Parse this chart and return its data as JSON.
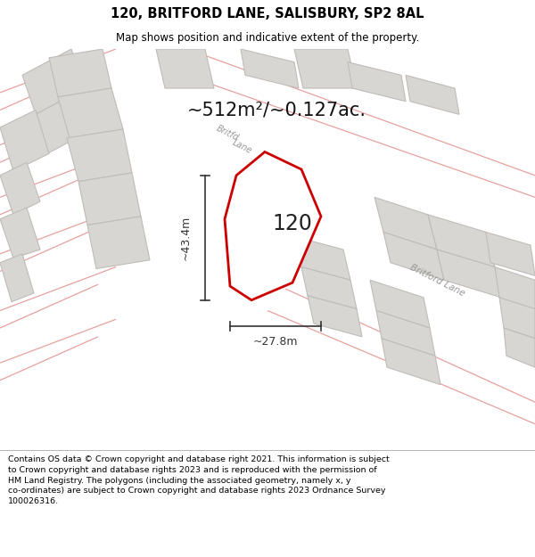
{
  "title": "120, BRITFORD LANE, SALISBURY, SP2 8AL",
  "subtitle": "Map shows position and indicative extent of the property.",
  "footer": "Contains OS data © Crown copyright and database right 2021. This information is subject to Crown copyright and database rights 2023 and is reproduced with the permission of HM Land Registry. The polygons (including the associated geometry, namely x, y co-ordinates) are subject to Crown copyright and database rights 2023 Ordnance Survey 100026316.",
  "area_text": "~512m²/~0.127ac.",
  "label_120": "120",
  "dim_width": "~27.8m",
  "dim_height": "~43.4m",
  "road_label_upper": "Britford Lane",
  "road_label_lower": "Britford Lane",
  "bg_color": "#f5f4f2",
  "plot_fill": "#ffffff",
  "plot_stroke": "#cc0000",
  "building_fill": "#d8d6d2",
  "building_edge": "#c0bcb8",
  "road_line_color": "#e8a0a0",
  "road_label_color": "#999999",
  "annotation_color": "#333333"
}
